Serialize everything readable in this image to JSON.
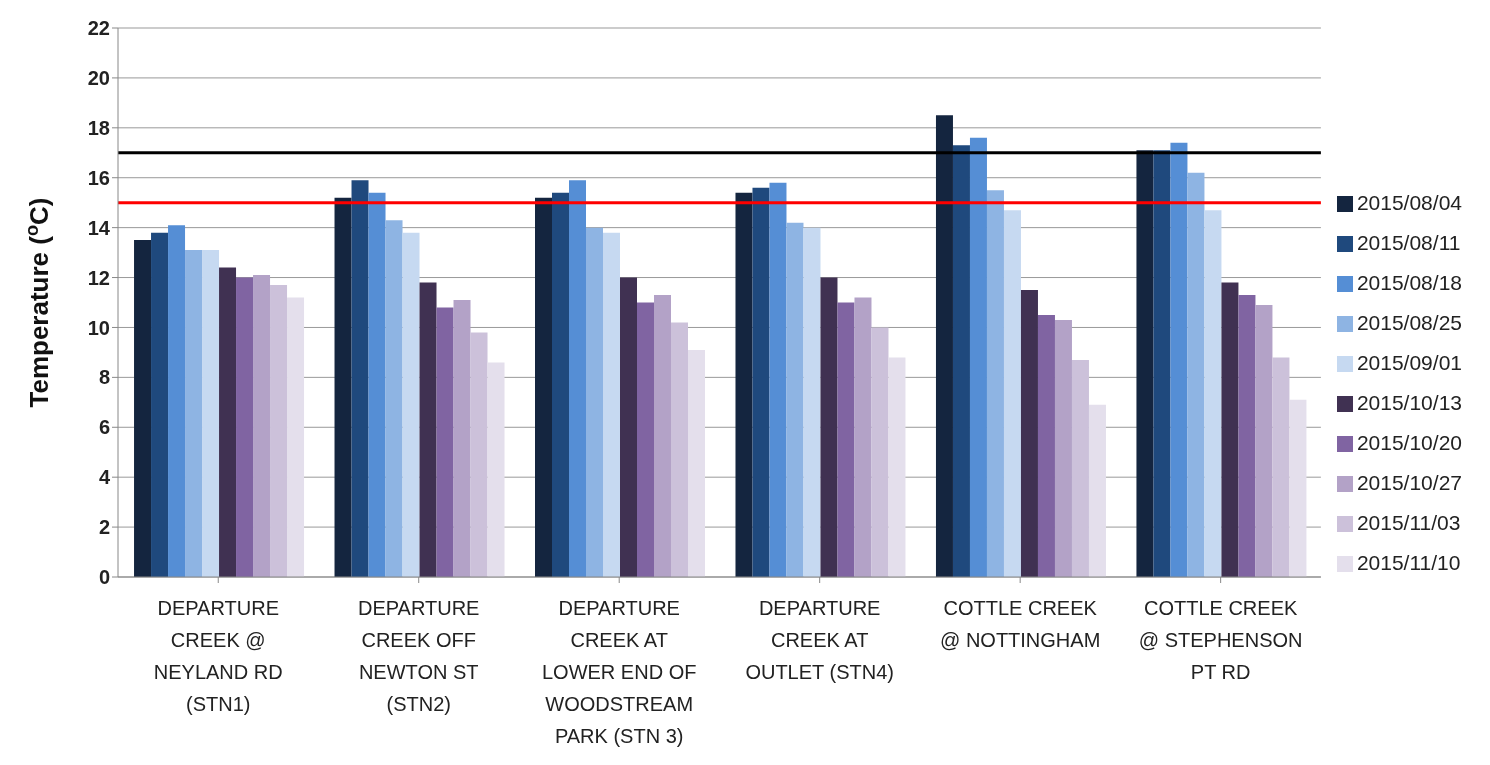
{
  "chart_data": {
    "type": "bar",
    "ylabel": "Temperature ($^{o}$C)",
    "categories": [
      "DEPARTURE CREEK @ NEYLAND RD (STN1)",
      "DEPARTURE CREEK OFF NEWTON ST (STN2)",
      "DEPARTURE CREEK AT LOWER END OF WOODSTREAM PARK (STN 3)",
      "DEPARTURE CREEK AT OUTLET (STN4)",
      "COTTLE CREEK @ NOTTINGHAM",
      "COTTLE CREEK @ STEPHENSON PT RD"
    ],
    "series": [
      {
        "name": "2015/08/04",
        "color": "#14253f",
        "values": [
          13.5,
          15.2,
          15.2,
          15.4,
          18.5,
          17.1
        ]
      },
      {
        "name": "2015/08/11",
        "color": "#1f497d",
        "values": [
          13.8,
          15.9,
          15.4,
          15.6,
          17.3,
          17.1
        ]
      },
      {
        "name": "2015/08/18",
        "color": "#558ed5",
        "values": [
          14.1,
          15.4,
          15.9,
          15.8,
          17.6,
          17.4
        ]
      },
      {
        "name": "2015/08/25",
        "color": "#8eb4e3",
        "values": [
          13.1,
          14.3,
          14.0,
          14.2,
          15.5,
          16.2
        ]
      },
      {
        "name": "2015/09/01",
        "color": "#c6d9f1",
        "values": [
          13.1,
          13.8,
          13.8,
          14.0,
          14.7,
          14.7
        ]
      },
      {
        "name": "2015/10/13",
        "color": "#403152",
        "values": [
          12.4,
          11.8,
          12.0,
          12.0,
          11.5,
          11.8
        ]
      },
      {
        "name": "2015/10/20",
        "color": "#8064a2",
        "values": [
          12.0,
          10.8,
          11.0,
          11.0,
          10.5,
          11.3
        ]
      },
      {
        "name": "2015/10/27",
        "color": "#b3a2c7",
        "values": [
          12.1,
          11.1,
          11.3,
          11.2,
          10.3,
          10.9
        ]
      },
      {
        "name": "2015/11/03",
        "color": "#ccc1da",
        "values": [
          11.7,
          9.8,
          10.2,
          10.0,
          8.7,
          8.8
        ]
      },
      {
        "name": "2015/11/10",
        "color": "#e4dfec",
        "values": [
          11.2,
          8.6,
          9.1,
          8.8,
          6.9,
          7.1
        ]
      }
    ],
    "ylim": [
      0,
      22
    ],
    "yticks": [
      0,
      2,
      4,
      6,
      8,
      10,
      12,
      14,
      16,
      18,
      20,
      22
    ],
    "grid": "y",
    "legend": "right",
    "ref_lines": [
      {
        "axis": "y",
        "value": 17,
        "color": "#000000"
      },
      {
        "axis": "y",
        "value": 15,
        "color": "#ff0000"
      }
    ]
  }
}
